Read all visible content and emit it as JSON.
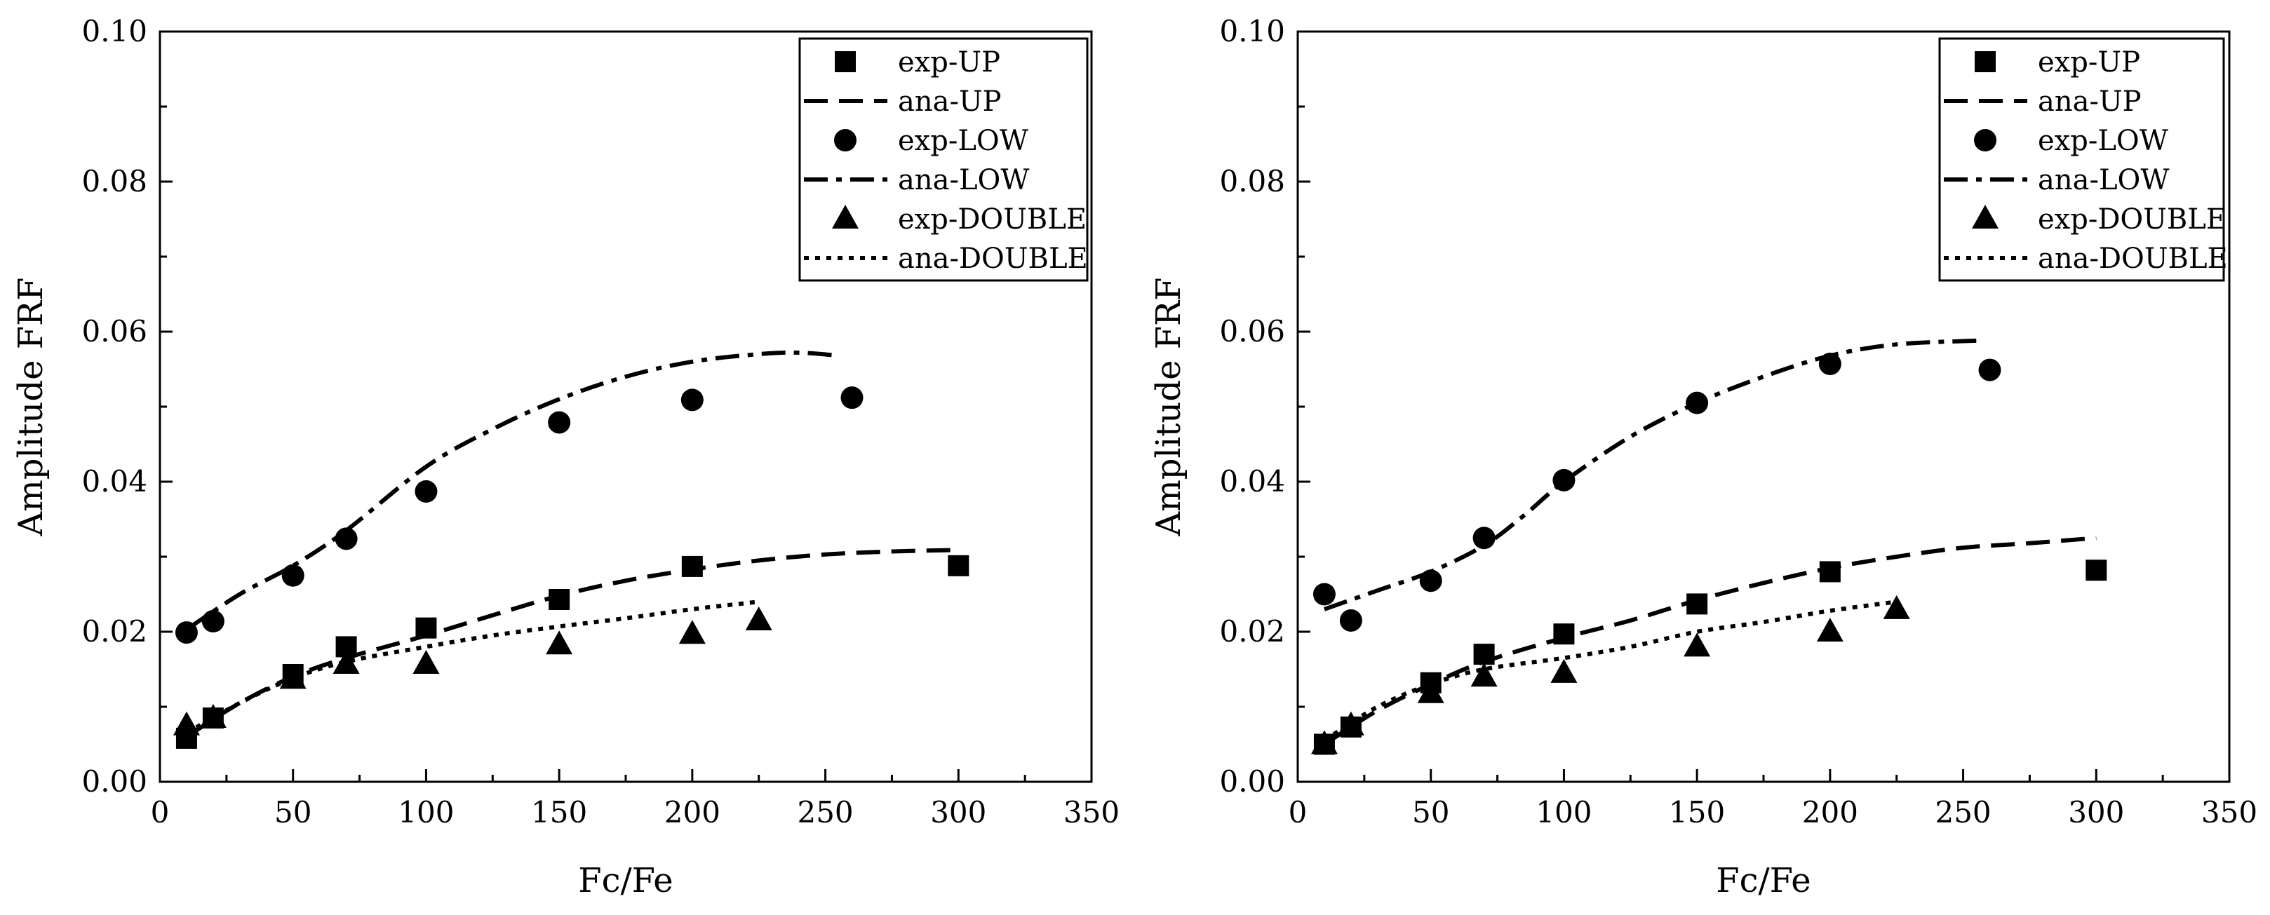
{
  "chart_data": [
    {
      "type": "scatter",
      "xlabel": "Fc/Fe",
      "ylabel": "Amplitude FRF",
      "xlim": [
        0,
        350
      ],
      "ylim": [
        0,
        0.1
      ],
      "xticks": [
        "0",
        "50",
        "100",
        "150",
        "200",
        "250",
        "300",
        "350"
      ],
      "yticks": [
        "0.00",
        "0.02",
        "0.04",
        "0.06",
        "0.08",
        "0.10"
      ],
      "legend_position": "top-right",
      "series": [
        {
          "name": "exp-UP",
          "kind": "marker",
          "marker": "square",
          "x": [
            10,
            20,
            50,
            70,
            100,
            150,
            200,
            300
          ],
          "y": [
            0.0058,
            0.0085,
            0.0143,
            0.018,
            0.0205,
            0.0243,
            0.0287,
            0.0288
          ]
        },
        {
          "name": "ana-UP",
          "kind": "line",
          "dash": "dashed",
          "x": [
            10,
            30,
            50,
            70,
            100,
            125,
            150,
            175,
            200,
            225,
            250,
            275,
            300
          ],
          "y": [
            0.006,
            0.0105,
            0.014,
            0.0165,
            0.0195,
            0.0222,
            0.0248,
            0.0268,
            0.0283,
            0.0295,
            0.0303,
            0.0307,
            0.0309
          ]
        },
        {
          "name": "exp-LOW",
          "kind": "marker",
          "marker": "circle",
          "x": [
            10,
            20,
            50,
            70,
            100,
            150,
            200,
            260
          ],
          "y": [
            0.0199,
            0.0214,
            0.0275,
            0.0324,
            0.0387,
            0.0479,
            0.0509,
            0.0512
          ]
        },
        {
          "name": "ana-LOW",
          "kind": "line",
          "dash": "dashdot",
          "x": [
            10,
            30,
            50,
            70,
            100,
            125,
            150,
            175,
            200,
            225,
            240,
            255
          ],
          "y": [
            0.0203,
            0.025,
            0.0288,
            0.0335,
            0.042,
            0.047,
            0.051,
            0.054,
            0.056,
            0.057,
            0.0572,
            0.0568
          ]
        },
        {
          "name": "exp-DOUBLE",
          "kind": "marker",
          "marker": "triangle",
          "x": [
            10,
            20,
            50,
            70,
            100,
            150,
            200,
            225
          ],
          "y": [
            0.0075,
            0.0085,
            0.0137,
            0.0157,
            0.0157,
            0.0183,
            0.0197,
            0.0215
          ]
        },
        {
          "name": "ana-DOUBLE",
          "kind": "line",
          "dash": "dotted",
          "x": [
            10,
            30,
            50,
            70,
            100,
            125,
            150,
            175,
            200,
            225
          ],
          "y": [
            0.0065,
            0.0105,
            0.0138,
            0.016,
            0.018,
            0.0195,
            0.0207,
            0.0218,
            0.023,
            0.024
          ]
        }
      ]
    },
    {
      "type": "scatter",
      "xlabel": "Fc/Fe",
      "ylabel": "Amplitude FRF",
      "xlim": [
        0,
        350
      ],
      "ylim": [
        0,
        0.1
      ],
      "xticks": [
        "0",
        "50",
        "100",
        "150",
        "200",
        "250",
        "300",
        "350"
      ],
      "yticks": [
        "0.00",
        "0.02",
        "0.04",
        "0.06",
        "0.08",
        "0.10"
      ],
      "legend_position": "top-right",
      "series": [
        {
          "name": "exp-UP",
          "kind": "marker",
          "marker": "square",
          "x": [
            10,
            20,
            50,
            70,
            100,
            150,
            200,
            300
          ],
          "y": [
            0.005,
            0.0073,
            0.0132,
            0.017,
            0.0197,
            0.0237,
            0.028,
            0.0282
          ]
        },
        {
          "name": "ana-UP",
          "kind": "line",
          "dash": "dashed",
          "x": [
            10,
            30,
            50,
            70,
            100,
            125,
            150,
            175,
            200,
            225,
            250,
            275,
            300
          ],
          "y": [
            0.005,
            0.0095,
            0.013,
            0.016,
            0.0192,
            0.0215,
            0.0242,
            0.0265,
            0.0285,
            0.03,
            0.0312,
            0.0318,
            0.0325
          ]
        },
        {
          "name": "exp-LOW",
          "kind": "marker",
          "marker": "circle",
          "x": [
            10,
            20,
            50,
            70,
            100,
            150,
            200,
            260
          ],
          "y": [
            0.025,
            0.0215,
            0.0268,
            0.0325,
            0.0402,
            0.0505,
            0.0557,
            0.0549
          ]
        },
        {
          "name": "ana-LOW",
          "kind": "line",
          "dash": "dashdot",
          "x": [
            10,
            30,
            50,
            70,
            85,
            100,
            125,
            150,
            175,
            200,
            225,
            255
          ],
          "y": [
            0.023,
            0.0255,
            0.028,
            0.0315,
            0.0355,
            0.04,
            0.046,
            0.0505,
            0.054,
            0.0568,
            0.0583,
            0.0588
          ]
        },
        {
          "name": "exp-DOUBLE",
          "kind": "marker",
          "marker": "triangle",
          "x": [
            10,
            20,
            50,
            70,
            100,
            150,
            200,
            225
          ],
          "y": [
            0.005,
            0.0075,
            0.0118,
            0.014,
            0.0145,
            0.018,
            0.02,
            0.023
          ]
        },
        {
          "name": "ana-DOUBLE",
          "kind": "line",
          "dash": "dotted",
          "x": [
            10,
            30,
            50,
            70,
            100,
            125,
            150,
            175,
            200,
            225
          ],
          "y": [
            0.0055,
            0.01,
            0.013,
            0.015,
            0.0165,
            0.018,
            0.02,
            0.0213,
            0.0228,
            0.024
          ]
        }
      ]
    }
  ]
}
